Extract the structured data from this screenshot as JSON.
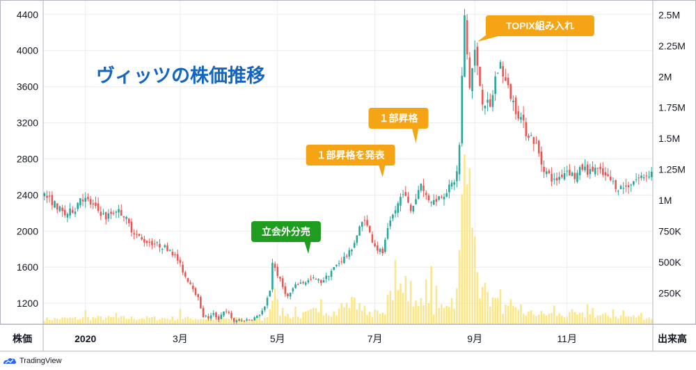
{
  "chart_data": {
    "type": "candlestick",
    "title": "ヴィッツの株価推移",
    "left_axis_label": "株価",
    "right_axis_label": "出来高",
    "price_ticks": [
      1200,
      1600,
      2000,
      2400,
      2800,
      3200,
      3600,
      4000,
      4400
    ],
    "price_range": [
      970,
      4560
    ],
    "volume_ticks": [
      {
        "value": 250000,
        "label": "250K"
      },
      {
        "value": 500000,
        "label": "500K"
      },
      {
        "value": 750000,
        "label": "750K"
      },
      {
        "value": 1000000,
        "label": "1M"
      },
      {
        "value": 1250000,
        "label": "1.25M"
      },
      {
        "value": 1500000,
        "label": "1.5M"
      },
      {
        "value": 1750000,
        "label": "1.75M"
      },
      {
        "value": 2000000,
        "label": "2M"
      },
      {
        "value": 2250000,
        "label": "2.25M"
      },
      {
        "value": 2500000,
        "label": "2.5M"
      }
    ],
    "volume_range": [
      0,
      2620000
    ],
    "x_ticks": [
      {
        "label": "2020",
        "index": 16
      },
      {
        "label": "3月",
        "index": 53
      },
      {
        "label": "5月",
        "index": 91
      },
      {
        "label": "7月",
        "index": 129
      },
      {
        "label": "9月",
        "index": 168
      },
      {
        "label": "11月",
        "index": 204
      }
    ],
    "bar_count": 238,
    "close_keypoints": [
      [
        0,
        2400
      ],
      [
        4,
        2300
      ],
      [
        8,
        2180
      ],
      [
        12,
        2250
      ],
      [
        14,
        2380
      ],
      [
        17,
        2330
      ],
      [
        20,
        2250
      ],
      [
        24,
        2150
      ],
      [
        28,
        2240
      ],
      [
        31,
        2180
      ],
      [
        34,
        2020
      ],
      [
        38,
        1900
      ],
      [
        42,
        1870
      ],
      [
        46,
        1830
      ],
      [
        49,
        1800
      ],
      [
        52,
        1680
      ],
      [
        55,
        1500
      ],
      [
        58,
        1380
      ],
      [
        60,
        1250
      ],
      [
        62,
        1060
      ],
      [
        64,
        1040
      ],
      [
        66,
        1080
      ],
      [
        68,
        1030
      ],
      [
        70,
        1120
      ],
      [
        72,
        1080
      ],
      [
        74,
        1000
      ],
      [
        77,
        1010
      ],
      [
        80,
        1020
      ],
      [
        83,
        1050
      ],
      [
        86,
        1150
      ],
      [
        88,
        1350
      ],
      [
        89,
        1660
      ],
      [
        91,
        1520
      ],
      [
        93,
        1380
      ],
      [
        95,
        1270
      ],
      [
        97,
        1360
      ],
      [
        99,
        1420
      ],
      [
        102,
        1440
      ],
      [
        105,
        1470
      ],
      [
        108,
        1440
      ],
      [
        110,
        1490
      ],
      [
        112,
        1560
      ],
      [
        114,
        1620
      ],
      [
        116,
        1680
      ],
      [
        118,
        1730
      ],
      [
        119,
        1760
      ],
      [
        121,
        1880
      ],
      [
        123,
        2030
      ],
      [
        125,
        2150
      ],
      [
        126,
        2050
      ],
      [
        128,
        1900
      ],
      [
        130,
        1800
      ],
      [
        132,
        1760
      ],
      [
        134,
        2000
      ],
      [
        136,
        2170
      ],
      [
        138,
        2300
      ],
      [
        140,
        2450
      ],
      [
        141,
        2360
      ],
      [
        143,
        2230
      ],
      [
        145,
        2360
      ],
      [
        147,
        2560
      ],
      [
        148,
        2430
      ],
      [
        150,
        2360
      ],
      [
        152,
        2330
      ],
      [
        154,
        2380
      ],
      [
        156,
        2420
      ],
      [
        158,
        2480
      ],
      [
        160,
        2560
      ],
      [
        161,
        2650
      ],
      [
        162,
        2950
      ],
      [
        163,
        3700
      ],
      [
        164,
        4350
      ],
      [
        165,
        3950
      ],
      [
        166,
        3600
      ],
      [
        168,
        4000
      ],
      [
        169,
        3800
      ],
      [
        171,
        3450
      ],
      [
        173,
        3400
      ],
      [
        174,
        3350
      ],
      [
        176,
        3700
      ],
      [
        178,
        3850
      ],
      [
        180,
        3650
      ],
      [
        182,
        3500
      ],
      [
        184,
        3350
      ],
      [
        186,
        3250
      ],
      [
        188,
        3100
      ],
      [
        190,
        3050
      ],
      [
        192,
        2950
      ],
      [
        194,
        2750
      ],
      [
        196,
        2650
      ],
      [
        199,
        2550
      ],
      [
        201,
        2600
      ],
      [
        204,
        2680
      ],
      [
        207,
        2600
      ],
      [
        210,
        2700
      ],
      [
        213,
        2650
      ],
      [
        215,
        2700
      ],
      [
        218,
        2620
      ],
      [
        221,
        2560
      ],
      [
        224,
        2480
      ],
      [
        227,
        2490
      ],
      [
        230,
        2560
      ],
      [
        233,
        2600
      ],
      [
        237,
        2650
      ]
    ],
    "volume_keypoints": [
      [
        0,
        40000
      ],
      [
        20,
        50000
      ],
      [
        60,
        45000
      ],
      [
        86,
        40000
      ],
      [
        88,
        130000
      ],
      [
        89,
        260000
      ],
      [
        91,
        110000
      ],
      [
        98,
        50000
      ],
      [
        108,
        120000
      ],
      [
        114,
        90000
      ],
      [
        120,
        180000
      ],
      [
        124,
        120000
      ],
      [
        130,
        80000
      ],
      [
        132,
        70000
      ],
      [
        134,
        180000
      ],
      [
        136,
        260000
      ],
      [
        138,
        200000
      ],
      [
        140,
        240000
      ],
      [
        142,
        160000
      ],
      [
        145,
        180000
      ],
      [
        148,
        200000
      ],
      [
        152,
        120000
      ],
      [
        155,
        100000
      ],
      [
        158,
        140000
      ],
      [
        160,
        200000
      ],
      [
        162,
        400000
      ],
      [
        163,
        800000
      ],
      [
        164,
        1200000
      ],
      [
        165,
        950000
      ],
      [
        166,
        600000
      ],
      [
        168,
        480000
      ],
      [
        170,
        300000
      ],
      [
        174,
        200000
      ],
      [
        180,
        120000
      ],
      [
        186,
        90000
      ],
      [
        195,
        80000
      ],
      [
        205,
        70000
      ],
      [
        215,
        70000
      ],
      [
        230,
        60000
      ],
      [
        237,
        50000
      ]
    ],
    "volume_spikes": [
      [
        16,
        110000
      ],
      [
        28,
        90000
      ],
      [
        53,
        120000
      ],
      [
        90,
        290000
      ],
      [
        91,
        200000
      ],
      [
        98,
        140000
      ],
      [
        108,
        200000
      ],
      [
        116,
        170000
      ],
      [
        120,
        220000
      ],
      [
        123,
        170000
      ],
      [
        130,
        110000
      ],
      [
        135,
        270000
      ],
      [
        137,
        520000
      ],
      [
        139,
        330000
      ],
      [
        141,
        390000
      ],
      [
        143,
        350000
      ],
      [
        145,
        190000
      ],
      [
        147,
        210000
      ],
      [
        149,
        360000
      ],
      [
        151,
        470000
      ],
      [
        153,
        310000
      ],
      [
        155,
        160000
      ],
      [
        159,
        210000
      ],
      [
        161,
        290000
      ],
      [
        162,
        600000
      ],
      [
        163,
        1050000
      ],
      [
        164,
        1370000
      ],
      [
        165,
        1130000
      ],
      [
        166,
        1260000
      ],
      [
        167,
        780000
      ],
      [
        168,
        710000
      ],
      [
        169,
        420000
      ],
      [
        171,
        300000
      ],
      [
        173,
        260000
      ],
      [
        176,
        210000
      ],
      [
        178,
        280000
      ],
      [
        182,
        200000
      ],
      [
        186,
        160000
      ],
      [
        199,
        150000
      ],
      [
        206,
        120000
      ],
      [
        212,
        160000
      ],
      [
        214,
        130000
      ],
      [
        222,
        120000
      ],
      [
        226,
        110000
      ],
      [
        233,
        90000
      ]
    ],
    "annotations": [
      {
        "text": "立会外分売",
        "index": 103,
        "color": "#1f9d1f"
      },
      {
        "text": "１部昇格を発表",
        "index": 132,
        "color": "#f5a416"
      },
      {
        "text": "１部昇格",
        "index": 145,
        "color": "#f5a416"
      },
      {
        "text": "TOPIX組み入れ",
        "index": 169,
        "color": "#f5a416"
      }
    ],
    "colors": {
      "up": "#26a69a",
      "down": "#ef5350",
      "volume": "#fbe68a",
      "title": "#1565c0",
      "grid": "#ececec",
      "axis": "#131722"
    },
    "grid": true
  },
  "footer": {
    "brand": "TradingView"
  }
}
